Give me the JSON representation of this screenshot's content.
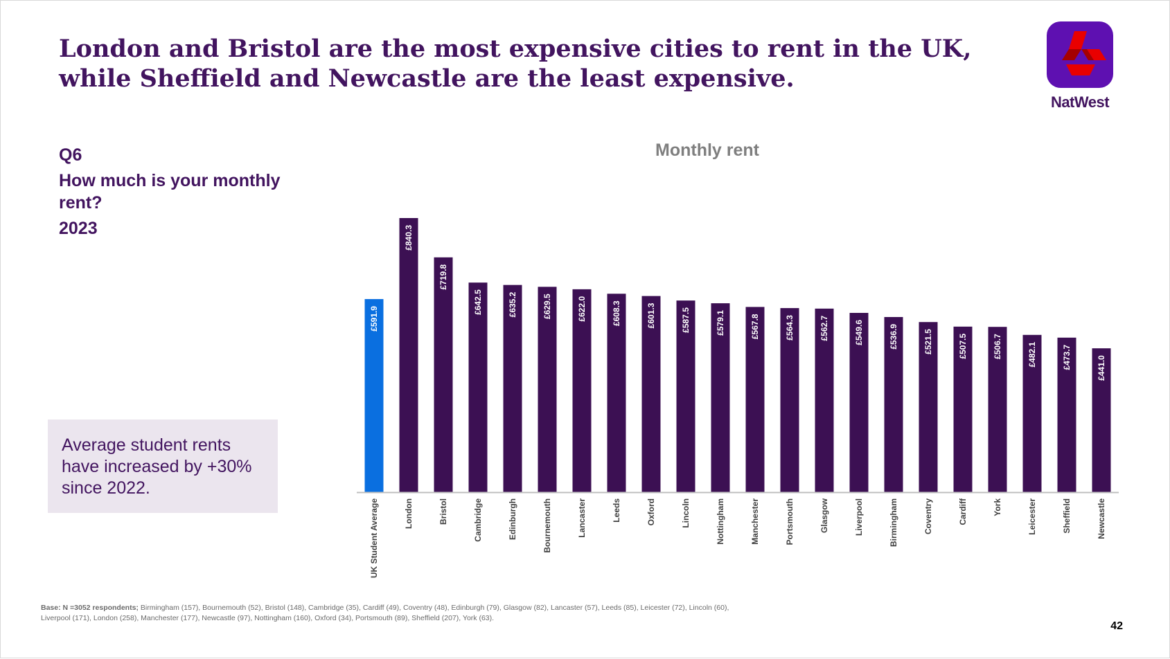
{
  "headline": "London and Bristol are the most expensive cities to rent in the UK, while Sheffield and Newcastle are the least expensive.",
  "brand": {
    "name": "NatWest",
    "color": "#5e10b1"
  },
  "question": {
    "number": "Q6",
    "text": "How much is your monthly rent?",
    "year": "2023"
  },
  "callout": "Average student rents have increased by +30% since 2022.",
  "chart_data": {
    "type": "bar",
    "title": "Monthly rent",
    "xlabel": "",
    "ylabel": "",
    "ylim": [
      0,
      840.3
    ],
    "categories": [
      "UK Student Average",
      "London",
      "Bristol",
      "Cambridge",
      "Edinburgh",
      "Bournemouth",
      "Lancaster",
      "Leeds",
      "Oxford",
      "Lincoln",
      "Nottingham",
      "Manchester",
      "Portsmouth",
      "Glasgow",
      "Liverpool",
      "Birmingham",
      "Coventry",
      "Cardiff",
      "York",
      "Leicester",
      "Sheffield",
      "Newcastle"
    ],
    "values": [
      591.9,
      840.3,
      719.8,
      642.5,
      635.2,
      629.5,
      622.0,
      608.3,
      601.3,
      587.5,
      579.1,
      567.8,
      564.3,
      562.7,
      549.6,
      536.9,
      521.5,
      507.5,
      506.7,
      482.1,
      473.7,
      441.0
    ],
    "labels": [
      "£591.9",
      "£840.3",
      "£719.8",
      "£642.5",
      "£635.2",
      "£629.5",
      "£622.0",
      "£608.3",
      "£601.3",
      "£587.5",
      "£579.1",
      "£567.8",
      "£564.3",
      "£562.7",
      "£549.6",
      "£536.9",
      "£521.5",
      "£507.5",
      "£506.7",
      "£482.1",
      "£473.7",
      "£441.0"
    ],
    "highlight_color": "#0a6fe0",
    "bar_color": "#3c1053",
    "grid": false
  },
  "footnote": {
    "base_label": "Base: N =3052 respondents;",
    "line1": "Birmingham (157),  Bournemouth (52), Bristol (148), Cambridge (35), Cardiff (49), Coventry (48),  Edinburgh (79), Glasgow (82), Lancaster (57), Leeds (85), Leicester (72), Lincoln (60),",
    "line2": "Liverpool (171), London (258), Manchester (177), Newcastle (97), Nottingham (160), Oxford (34), Portsmouth (89), Sheffield (207), York (63)."
  },
  "page_number": "42"
}
